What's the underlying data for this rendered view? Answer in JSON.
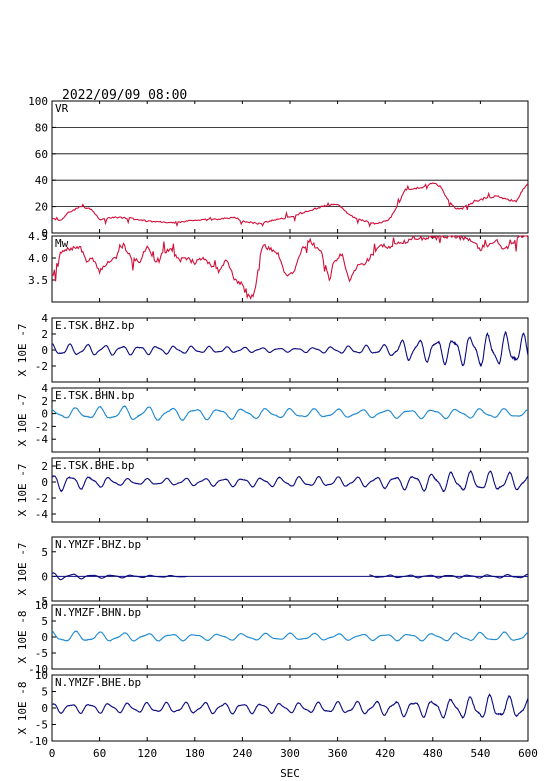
{
  "header": {
    "datetime": "2022/09/09  08:00"
  },
  "colors": {
    "red": "#d0103a",
    "navy": "#0b0b80",
    "blue": "#1f8ad0",
    "axis": "#000000"
  },
  "x_axis": {
    "label": "SEC",
    "ticks": [
      0,
      60,
      120,
      180,
      240,
      300,
      360,
      420,
      480,
      540,
      600
    ],
    "range": [
      0,
      600
    ]
  },
  "chart_data": [
    {
      "type": "line",
      "title": "VR",
      "color": "red",
      "ylim": [
        0,
        100
      ],
      "yticks": [
        0,
        20,
        40,
        60,
        80,
        100
      ],
      "grid": true,
      "unit": "",
      "knots": [
        [
          0,
          11
        ],
        [
          10,
          9
        ],
        [
          20,
          15
        ],
        [
          35,
          20
        ],
        [
          50,
          18
        ],
        [
          60,
          10
        ],
        [
          80,
          12
        ],
        [
          100,
          11
        ],
        [
          120,
          9
        ],
        [
          140,
          8
        ],
        [
          160,
          8
        ],
        [
          180,
          10
        ],
        [
          200,
          10
        ],
        [
          220,
          11
        ],
        [
          230,
          12
        ],
        [
          240,
          9
        ],
        [
          250,
          8
        ],
        [
          260,
          7
        ],
        [
          275,
          9
        ],
        [
          290,
          11
        ],
        [
          300,
          12
        ],
        [
          310,
          14
        ],
        [
          320,
          16
        ],
        [
          340,
          20
        ],
        [
          360,
          22
        ],
        [
          370,
          16
        ],
        [
          380,
          12
        ],
        [
          400,
          8
        ],
        [
          410,
          7
        ],
        [
          425,
          10
        ],
        [
          435,
          20
        ],
        [
          445,
          33
        ],
        [
          460,
          34
        ],
        [
          470,
          35
        ],
        [
          480,
          38
        ],
        [
          490,
          35
        ],
        [
          500,
          24
        ],
        [
          510,
          18
        ],
        [
          520,
          20
        ],
        [
          535,
          24
        ],
        [
          545,
          26
        ],
        [
          560,
          28
        ],
        [
          575,
          25
        ],
        [
          585,
          24
        ],
        [
          595,
          34
        ],
        [
          600,
          38
        ]
      ],
      "noise": 1.2,
      "seed": 3
    },
    {
      "type": "line",
      "title": "Mw",
      "color": "red",
      "ylim": [
        3.0,
        4.5
      ],
      "yticks": [
        3.5,
        4.0,
        4.5
      ],
      "yticklabels": [
        "3.5",
        "4.0",
        "4.5"
      ],
      "grid": false,
      "unit": "",
      "knots": [
        [
          0,
          3.6
        ],
        [
          5,
          3.5
        ],
        [
          10,
          4.1
        ],
        [
          20,
          4.2
        ],
        [
          35,
          4.25
        ],
        [
          45,
          3.9
        ],
        [
          50,
          4.0
        ],
        [
          60,
          3.7
        ],
        [
          70,
          3.9
        ],
        [
          80,
          4.0
        ],
        [
          90,
          4.3
        ],
        [
          100,
          4.0
        ],
        [
          110,
          3.9
        ],
        [
          120,
          4.3
        ],
        [
          130,
          3.9
        ],
        [
          140,
          4.1
        ],
        [
          150,
          4.2
        ],
        [
          160,
          3.95
        ],
        [
          170,
          4.0
        ],
        [
          180,
          3.9
        ],
        [
          190,
          4.0
        ],
        [
          200,
          3.85
        ],
        [
          210,
          3.7
        ],
        [
          220,
          4.0
        ],
        [
          230,
          3.5
        ],
        [
          240,
          3.4
        ],
        [
          250,
          3.1
        ],
        [
          255,
          3.2
        ],
        [
          265,
          4.3
        ],
        [
          275,
          4.2
        ],
        [
          285,
          4.1
        ],
        [
          295,
          3.6
        ],
        [
          305,
          3.7
        ],
        [
          315,
          4.2
        ],
        [
          325,
          4.4
        ],
        [
          340,
          4.1
        ],
        [
          350,
          3.5
        ],
        [
          355,
          3.9
        ],
        [
          365,
          4.1
        ],
        [
          375,
          3.5
        ],
        [
          385,
          3.8
        ],
        [
          395,
          3.9
        ],
        [
          405,
          4.1
        ],
        [
          415,
          4.3
        ],
        [
          425,
          4.25
        ],
        [
          440,
          4.35
        ],
        [
          450,
          4.4
        ],
        [
          460,
          4.45
        ],
        [
          470,
          4.45
        ],
        [
          480,
          4.5
        ],
        [
          500,
          4.5
        ],
        [
          520,
          4.45
        ],
        [
          530,
          4.4
        ],
        [
          540,
          4.2
        ],
        [
          550,
          4.3
        ],
        [
          560,
          4.4
        ],
        [
          570,
          4.2
        ],
        [
          580,
          4.3
        ],
        [
          590,
          4.5
        ],
        [
          600,
          4.5
        ]
      ],
      "noise": 0.09,
      "seed": 7
    },
    {
      "type": "line",
      "title": "E.TSK.BHZ.bp",
      "color": "navy",
      "ylim": [
        -4,
        4
      ],
      "yticks": [
        -2,
        0,
        2,
        4
      ],
      "ylabel": "X 10E -7",
      "grid": false,
      "zero_line": false,
      "wave": [
        [
          0,
          0.6
        ],
        [
          300,
          0.2
        ],
        [
          420,
          0.5
        ],
        [
          440,
          1.0
        ],
        [
          480,
          1.2
        ],
        [
          520,
          1.5
        ],
        [
          560,
          1.7
        ],
        [
          600,
          1.5
        ]
      ],
      "period": 22,
      "seed": 11
    },
    {
      "type": "line",
      "title": "E.TSK.BHN.bp",
      "color": "blue",
      "ylim": [
        -6,
        4
      ],
      "yticks": [
        -4,
        -2,
        0,
        2,
        4
      ],
      "ylabel": "X 10E -7",
      "grid": false,
      "zero_line": false,
      "wave": [
        [
          0,
          0.6
        ],
        [
          100,
          0.9
        ],
        [
          200,
          0.7
        ],
        [
          300,
          0.6
        ],
        [
          400,
          0.5
        ],
        [
          480,
          0.6
        ],
        [
          560,
          0.6
        ],
        [
          600,
          0.5
        ]
      ],
      "period": 30,
      "seed": 13
    },
    {
      "type": "line",
      "title": "E.TSK.BHE.bp",
      "color": "navy",
      "ylim": [
        -5,
        3
      ],
      "yticks": [
        -4,
        -2,
        0,
        2
      ],
      "ylabel": "X 10E -7",
      "grid": false,
      "zero_line": false,
      "wave": [
        [
          0,
          0.9
        ],
        [
          100,
          0.3
        ],
        [
          200,
          0.4
        ],
        [
          300,
          0.5
        ],
        [
          400,
          0.5
        ],
        [
          460,
          0.8
        ],
        [
          500,
          1.0
        ],
        [
          560,
          1.0
        ],
        [
          600,
          0.8
        ]
      ],
      "period": 24,
      "seed": 17
    },
    {
      "type": "line",
      "title": "N.YMZF.BHZ.bp",
      "color": "navy",
      "ylim": [
        -5,
        8
      ],
      "yticks": [
        -5,
        0,
        5
      ],
      "ylabel": "X 10E -7",
      "grid": false,
      "zero_line": true,
      "gap": [
        170,
        400
      ],
      "wave": [
        [
          0,
          0.6
        ],
        [
          50,
          0.3
        ],
        [
          170,
          0.1
        ],
        [
          400,
          0.2
        ],
        [
          600,
          0.3
        ]
      ],
      "period": 25,
      "seed": 19
    },
    {
      "type": "line",
      "title": "N.YMZF.BHN.bp",
      "color": "blue",
      "ylim": [
        -10,
        10
      ],
      "yticks": [
        -10,
        -5,
        0,
        5,
        10
      ],
      "ylabel": "X 10E -8",
      "grid": false,
      "zero_line": false,
      "wave": [
        [
          0,
          1.5
        ],
        [
          100,
          1.0
        ],
        [
          200,
          0.8
        ],
        [
          300,
          0.9
        ],
        [
          400,
          0.8
        ],
        [
          500,
          1.0
        ],
        [
          600,
          1.2
        ]
      ],
      "period": 30,
      "seed": 23
    },
    {
      "type": "line",
      "title": "N.YMZF.BHE.bp",
      "color": "navy",
      "ylim": [
        -10,
        10
      ],
      "yticks": [
        -10,
        -5,
        0,
        5,
        10
      ],
      "ylabel": "X 10E -8",
      "grid": false,
      "zero_line": false,
      "wave": [
        [
          0,
          1.2
        ],
        [
          100,
          1.2
        ],
        [
          200,
          1.4
        ],
        [
          300,
          1.2
        ],
        [
          400,
          1.6
        ],
        [
          450,
          2.0
        ],
        [
          500,
          2.3
        ],
        [
          550,
          3.0
        ],
        [
          600,
          2.4
        ]
      ],
      "period": 24,
      "seed": 29
    }
  ]
}
